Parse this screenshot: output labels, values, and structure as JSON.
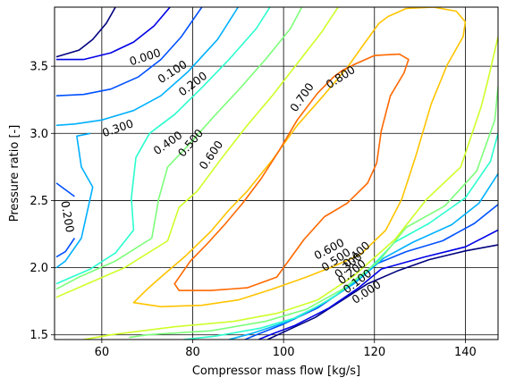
{
  "chart_data": {
    "type": "contour",
    "title": "",
    "xlabel": "Compressor mass flow [kg/s]",
    "ylabel": "Pressure ratio [-]",
    "xlim": [
      49.6,
      147.2
    ],
    "ylim": [
      1.465,
      3.94
    ],
    "xticks": [
      60,
      80,
      100,
      120,
      140
    ],
    "yticks": [
      1.5,
      2.0,
      2.5,
      3.0,
      3.5
    ],
    "xtick_labels": [
      "60",
      "80",
      "100",
      "120",
      "140"
    ],
    "ytick_labels": [
      "1.5",
      "2.0",
      "2.5",
      "3.0",
      "3.5"
    ],
    "grid": true,
    "colormap": "jet",
    "levels": [
      {
        "level": 0.0,
        "color": "#00007f",
        "lines": [
          [
            [
              63.0,
              3.94
            ],
            [
              61.0,
              3.82
            ],
            [
              58.0,
              3.7
            ],
            [
              55.0,
              3.62
            ],
            [
              50.0,
              3.57
            ]
          ],
          [
            [
              147.2,
              2.17
            ],
            [
              140.0,
              2.125
            ],
            [
              132.0,
              2.06
            ],
            [
              125.0,
              1.975
            ],
            [
              118.5,
              1.88
            ],
            [
              113.0,
              1.76
            ],
            [
              107.0,
              1.63
            ],
            [
              100.0,
              1.52
            ],
            [
              96.5,
              1.465
            ]
          ]
        ],
        "labels": [
          {
            "text": "0.000",
            "x": 69.5,
            "y": 3.57,
            "angle": -18
          },
          {
            "text": "0.000",
            "x": 118.2,
            "y": 1.82,
            "angle": -34
          }
        ]
      },
      {
        "level": 0.1,
        "color": "#0000e8",
        "lines": [
          [
            [
              75.0,
              3.94
            ],
            [
              71.5,
              3.8
            ],
            [
              67.0,
              3.68
            ],
            [
              62.0,
              3.6
            ],
            [
              56.0,
              3.55
            ],
            [
              50.0,
              3.55
            ]
          ],
          [
            [
              147.2,
              2.28
            ],
            [
              140.0,
              2.155
            ],
            [
              131.0,
              2.08
            ],
            [
              121.5,
              1.99
            ],
            [
              116.5,
              1.85
            ],
            [
              110.0,
              1.7
            ],
            [
              102.5,
              1.57
            ],
            [
              97.0,
              1.5
            ],
            [
              94.5,
              1.465
            ]
          ]
        ],
        "labels": [
          {
            "text": "0.100",
            "x": 75.5,
            "y": 3.46,
            "angle": -33
          },
          {
            "text": "0.100",
            "x": 116.2,
            "y": 1.9,
            "angle": -37
          }
        ]
      },
      {
        "level": 0.2,
        "color": "#0050ff",
        "lines": [
          [
            [
              82.0,
              3.94
            ],
            [
              77.5,
              3.72
            ],
            [
              73.0,
              3.55
            ],
            [
              68.0,
              3.42
            ],
            [
              62.0,
              3.33
            ],
            [
              56.0,
              3.29
            ],
            [
              50.0,
              3.28
            ]
          ],
          [
            [
              50.0,
              2.63
            ],
            [
              52.0,
              2.58
            ],
            [
              54.0,
              2.53
            ]
          ],
          [
            [
              50.0,
              2.08
            ],
            [
              52.0,
              2.12
            ],
            [
              54.0,
              2.22
            ]
          ],
          [
            [
              147.2,
              2.47
            ],
            [
              142.0,
              2.33
            ],
            [
              135.0,
              2.2
            ],
            [
              127.0,
              2.12
            ],
            [
              120.5,
              2.03
            ],
            [
              114.0,
              1.85
            ],
            [
              107.5,
              1.7
            ],
            [
              100.0,
              1.58
            ],
            [
              94.0,
              1.5
            ],
            [
              91.5,
              1.465
            ]
          ]
        ],
        "labels": [
          {
            "text": "0.200",
            "x": 80.0,
            "y": 3.37,
            "angle": -37
          },
          {
            "text": "0.200",
            "x": 52.5,
            "y": 2.38,
            "angle": 80
          },
          {
            "text": "0.200",
            "x": 115.0,
            "y": 1.97,
            "angle": -39
          }
        ]
      },
      {
        "level": 0.3,
        "color": "#00b0ff",
        "lines": [
          [
            [
              90.0,
              3.94
            ],
            [
              85.5,
              3.7
            ],
            [
              79.0,
              3.46
            ],
            [
              73.0,
              3.28
            ],
            [
              67.0,
              3.17
            ],
            [
              60.0,
              3.1
            ],
            [
              54.0,
              3.07
            ],
            [
              50.0,
              3.06
            ]
          ],
          [
            [
              50.0,
              2.0
            ],
            [
              52.0,
              2.05
            ],
            [
              55.5,
              2.22
            ],
            [
              58.0,
              2.6
            ],
            [
              55.5,
              2.75
            ],
            [
              54.5,
              2.98
            ],
            [
              57.5,
              3.0
            ]
          ],
          [
            [
              147.2,
              2.7
            ],
            [
              143.0,
              2.48
            ],
            [
              137.0,
              2.32
            ],
            [
              128.5,
              2.19
            ],
            [
              122.0,
              2.07
            ],
            [
              115.5,
              1.88
            ],
            [
              108.5,
              1.73
            ],
            [
              101.0,
              1.6
            ],
            [
              93.0,
              1.51
            ],
            [
              88.0,
              1.465
            ]
          ]
        ],
        "labels": [
          {
            "text": "0.300",
            "x": 63.5,
            "y": 3.04,
            "angle": -19
          },
          {
            "text": "0.300",
            "x": 114.2,
            "y": 2.02,
            "angle": -41
          }
        ]
      },
      {
        "level": 0.4,
        "color": "#29ffce",
        "lines": [
          [
            [
              97.0,
              3.94
            ],
            [
              94.0,
              3.78
            ],
            [
              88.0,
              3.55
            ],
            [
              82.0,
              3.34
            ],
            [
              76.0,
              3.14
            ],
            [
              70.5,
              3.0
            ],
            [
              67.5,
              2.82
            ],
            [
              66.5,
              2.52
            ],
            [
              67.0,
              2.28
            ],
            [
              63.0,
              2.11
            ],
            [
              57.5,
              1.99
            ],
            [
              52.0,
              1.91
            ],
            [
              50.0,
              1.88
            ]
          ],
          [
            [
              147.2,
              3.0
            ],
            [
              145.5,
              2.79
            ],
            [
              140.0,
              2.52
            ],
            [
              132.0,
              2.33
            ],
            [
              124.5,
              2.19
            ],
            [
              118.0,
              1.96
            ],
            [
              110.5,
              1.77
            ],
            [
              103.0,
              1.63
            ],
            [
              95.0,
              1.55
            ],
            [
              85.0,
              1.49
            ],
            [
              78.0,
              1.465
            ]
          ]
        ],
        "labels": [
          {
            "text": "0.400",
            "x": 74.5,
            "y": 2.93,
            "angle": -35
          },
          {
            "text": "0.400",
            "x": 116.0,
            "y": 2.1,
            "angle": -43
          }
        ]
      },
      {
        "level": 0.5,
        "color": "#7dff7a",
        "lines": [
          [
            [
              104.0,
              3.94
            ],
            [
              101.5,
              3.78
            ],
            [
              96.0,
              3.55
            ],
            [
              90.0,
              3.32
            ],
            [
              84.5,
              3.12
            ],
            [
              79.0,
              2.91
            ],
            [
              74.5,
              2.75
            ],
            [
              72.5,
              2.51
            ],
            [
              71.0,
              2.22
            ],
            [
              63.0,
              2.05
            ],
            [
              55.0,
              1.93
            ],
            [
              50.0,
              1.84
            ]
          ],
          [
            [
              147.2,
              3.35
            ],
            [
              146.5,
              3.1
            ],
            [
              142.5,
              2.72
            ],
            [
              135.5,
              2.46
            ],
            [
              127.0,
              2.3
            ],
            [
              121.0,
              2.05
            ],
            [
              113.0,
              1.84
            ],
            [
              105.0,
              1.69
            ],
            [
              96.0,
              1.6
            ],
            [
              84.0,
              1.53
            ],
            [
              70.0,
              1.5
            ],
            [
              66.0,
              1.48
            ]
          ]
        ],
        "labels": [
          {
            "text": "0.500",
            "x": 79.5,
            "y": 2.93,
            "angle": -50
          },
          {
            "text": "0.500",
            "x": 111.5,
            "y": 2.06,
            "angle": -34
          }
        ]
      },
      {
        "level": 0.6,
        "color": "#ceff29",
        "lines": [
          [
            [
              112.0,
              3.94
            ],
            [
              108.5,
              3.76
            ],
            [
              103.0,
              3.52
            ],
            [
              97.5,
              3.28
            ],
            [
              92.0,
              3.06
            ],
            [
              86.5,
              2.82
            ],
            [
              81.0,
              2.57
            ],
            [
              77.0,
              2.45
            ],
            [
              74.5,
              2.2
            ],
            [
              65.0,
              2.0
            ],
            [
              57.5,
              1.89
            ],
            [
              50.0,
              1.78
            ]
          ],
          [
            [
              147.2,
              3.72
            ],
            [
              145.0,
              3.4
            ],
            [
              143.5,
              3.2
            ],
            [
              139.0,
              2.75
            ],
            [
              131.5,
              2.51
            ],
            [
              124.5,
              2.21
            ],
            [
              115.5,
              1.94
            ],
            [
              107.5,
              1.76
            ],
            [
              98.5,
              1.66
            ],
            [
              89.0,
              1.6
            ],
            [
              76.0,
              1.56
            ],
            [
              62.0,
              1.5
            ],
            [
              56.0,
              1.465
            ]
          ]
        ],
        "labels": [
          {
            "text": "0.600",
            "x": 84.0,
            "y": 2.84,
            "angle": -55
          },
          {
            "text": "0.600",
            "x": 110.0,
            "y": 2.14,
            "angle": -28
          }
        ]
      },
      {
        "level": 0.7,
        "color": "#ffc400",
        "lines": [
          [
            [
              121.0,
              3.82
            ],
            [
              118.0,
              3.68
            ],
            [
              114.0,
              3.49
            ],
            [
              108.5,
              3.27
            ],
            [
              103.0,
              3.06
            ],
            [
              97.5,
              2.8
            ],
            [
              92.0,
              2.57
            ],
            [
              88.0,
              2.43
            ],
            [
              84.0,
              2.27
            ],
            [
              78.5,
              2.09
            ],
            [
              73.0,
              1.93
            ],
            [
              70.0,
              1.84
            ],
            [
              67.0,
              1.74
            ],
            [
              73.0,
              1.71
            ],
            [
              82.0,
              1.72
            ],
            [
              90.0,
              1.76
            ],
            [
              97.5,
              1.84
            ],
            [
              105.0,
              1.93
            ],
            [
              111.0,
              2.01
            ],
            [
              117.0,
              2.1
            ],
            [
              122.5,
              2.28
            ],
            [
              126.0,
              2.51
            ],
            [
              129.0,
              2.82
            ],
            [
              132.5,
              3.22
            ],
            [
              136.0,
              3.51
            ],
            [
              139.5,
              3.72
            ],
            [
              140.0,
              3.83
            ],
            [
              138.0,
              3.91
            ],
            [
              133.0,
              3.94
            ],
            [
              127.0,
              3.93
            ],
            [
              123.0,
              3.87
            ],
            [
              121.0,
              3.82
            ]
          ]
        ],
        "labels": [
          {
            "text": "0.700",
            "x": 104.0,
            "y": 3.27,
            "angle": -55
          }
        ]
      },
      {
        "level": 0.8,
        "color": "#ff6800",
        "lines": [
          [
            [
              111.0,
              3.42
            ],
            [
              107.5,
              3.3
            ],
            [
              103.0,
              3.1
            ],
            [
              99.0,
              2.87
            ],
            [
              95.0,
              2.66
            ],
            [
              91.0,
              2.48
            ],
            [
              87.0,
              2.32
            ],
            [
              83.0,
              2.17
            ],
            [
              79.5,
              2.05
            ],
            [
              76.0,
              1.88
            ],
            [
              77.0,
              1.83
            ],
            [
              84.0,
              1.83
            ],
            [
              92.0,
              1.85
            ],
            [
              98.5,
              1.93
            ],
            [
              104.5,
              2.21
            ],
            [
              109.0,
              2.38
            ],
            [
              114.0,
              2.48
            ],
            [
              118.5,
              2.63
            ],
            [
              120.5,
              2.78
            ],
            [
              121.5,
              3.02
            ],
            [
              123.5,
              3.28
            ],
            [
              126.5,
              3.45
            ],
            [
              127.5,
              3.55
            ],
            [
              125.5,
              3.59
            ],
            [
              120.0,
              3.58
            ],
            [
              116.0,
              3.52
            ],
            [
              113.0,
              3.47
            ],
            [
              111.0,
              3.42
            ]
          ]
        ],
        "labels": [
          {
            "text": "0.800",
            "x": 112.5,
            "y": 3.42,
            "angle": -33
          }
        ]
      }
    ]
  }
}
